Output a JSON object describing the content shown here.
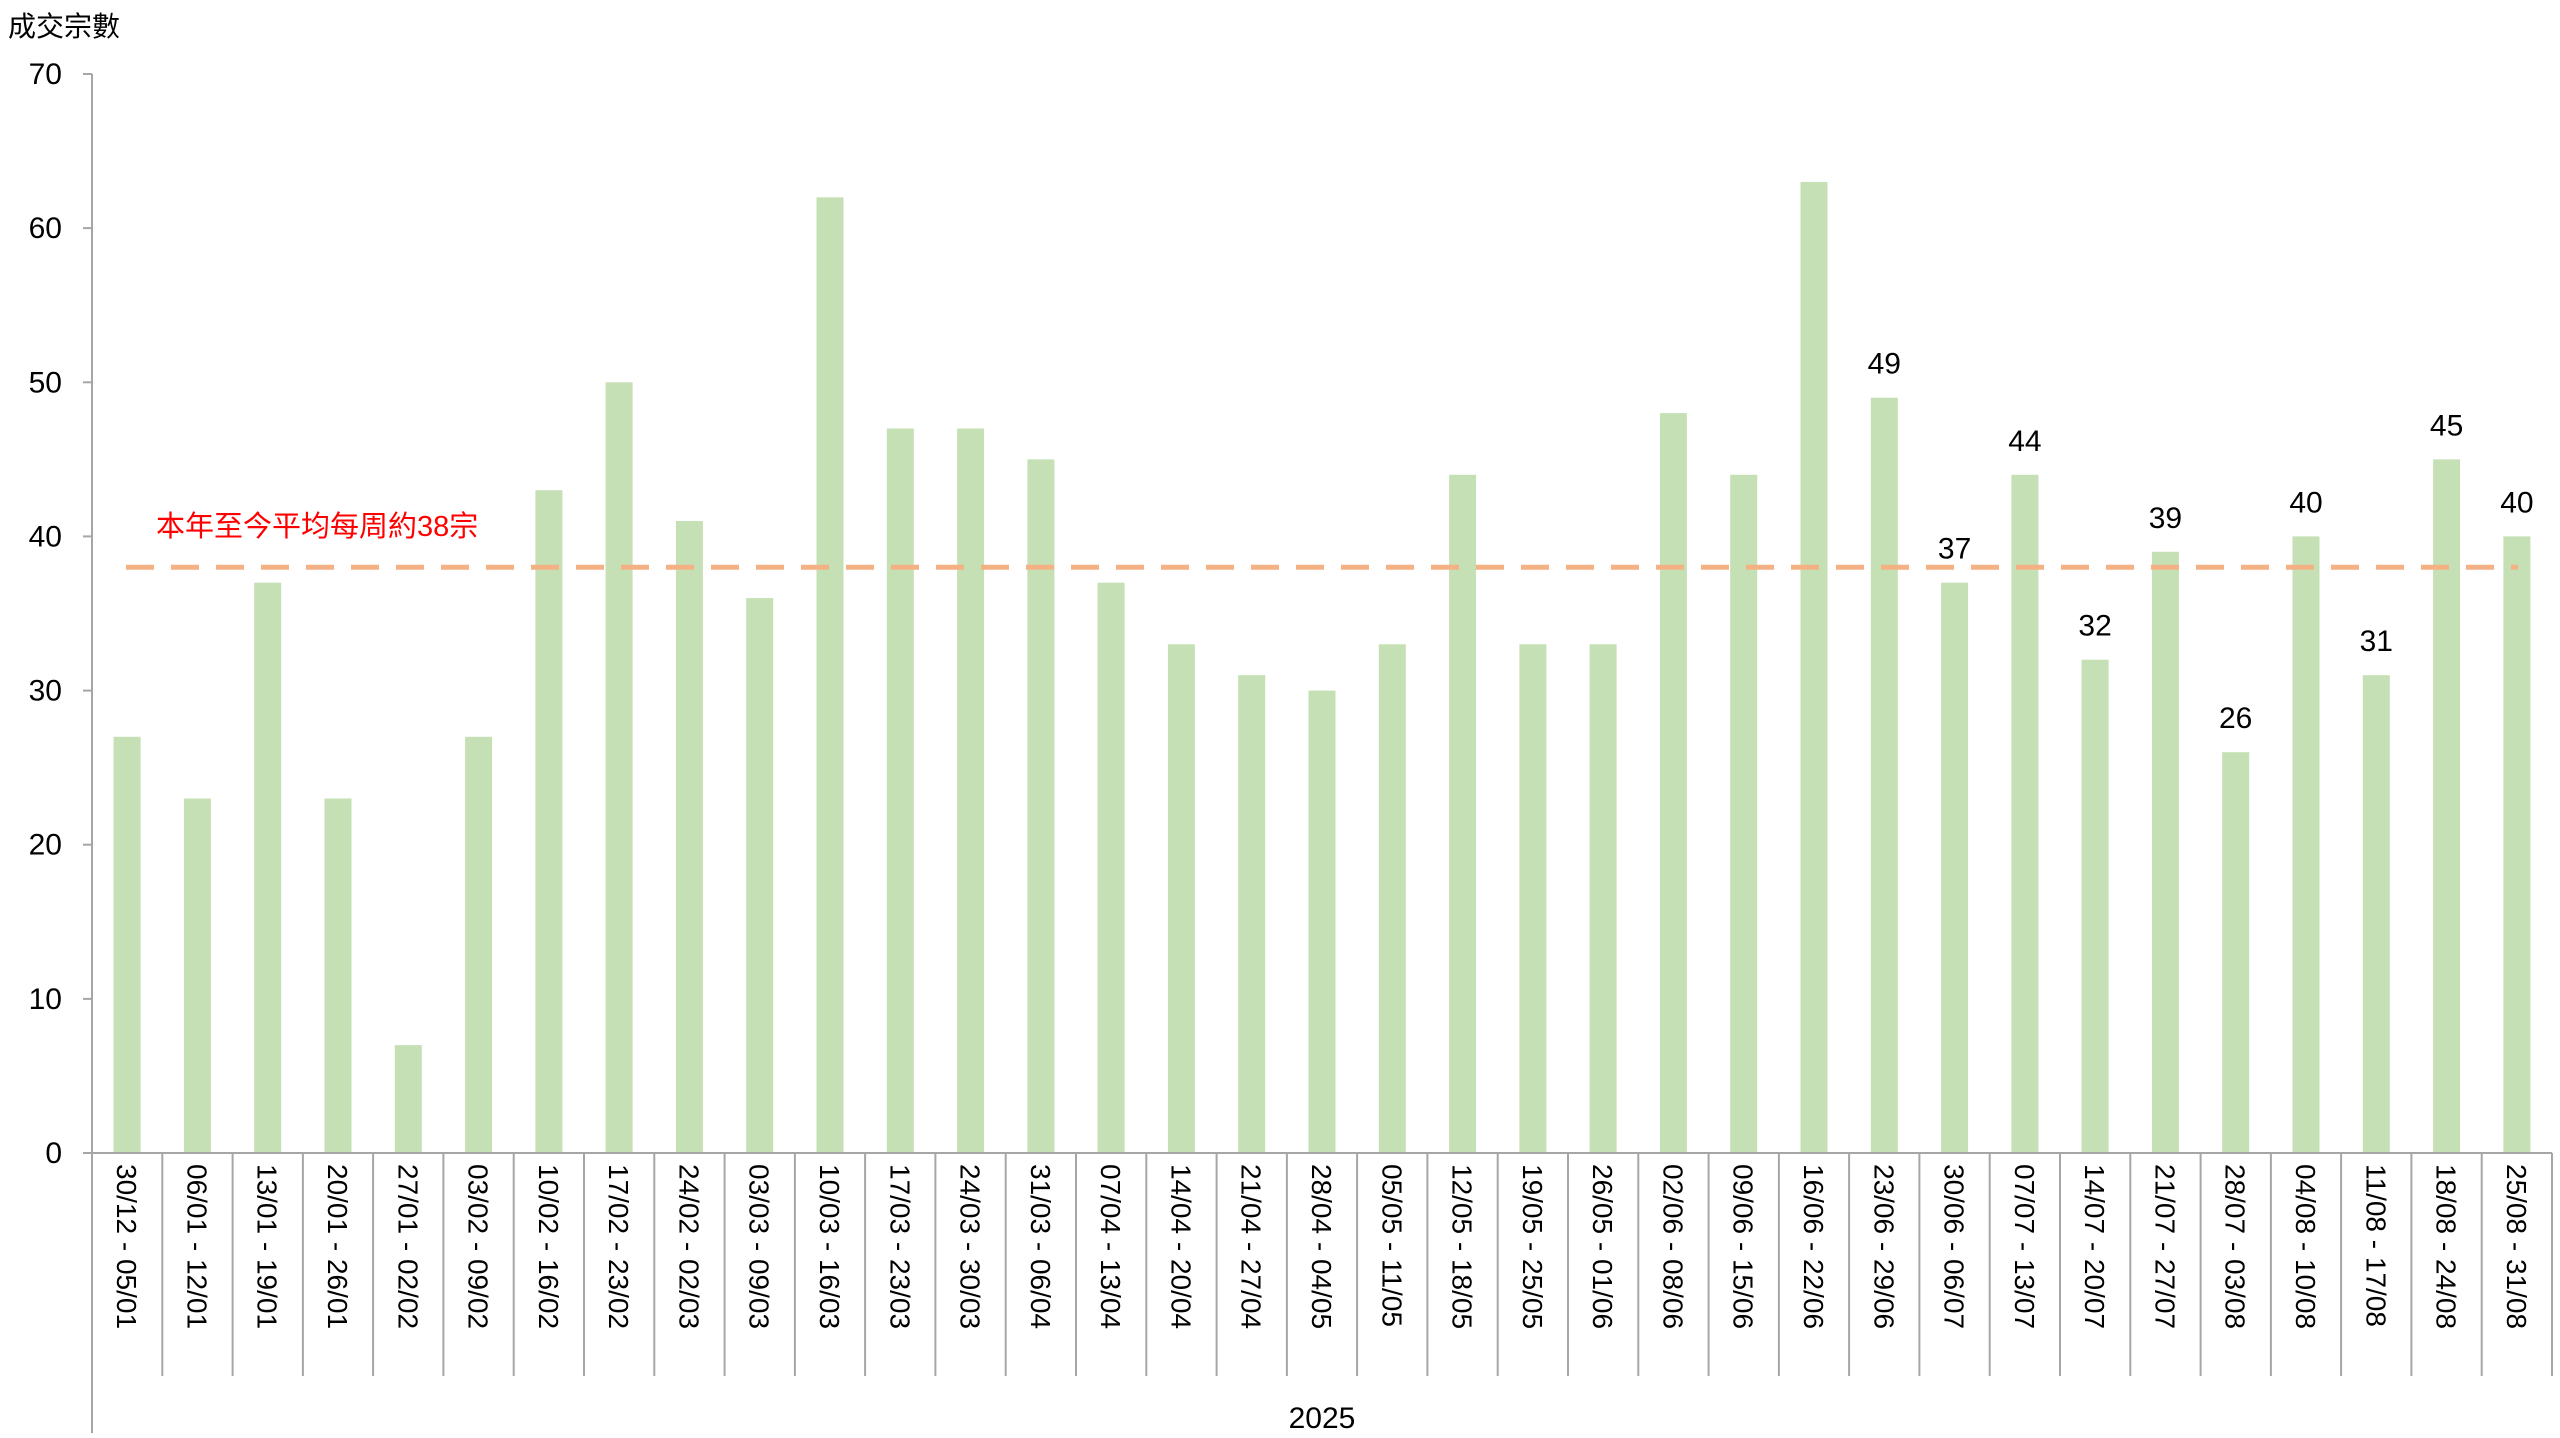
{
  "chart_data": {
    "type": "bar",
    "ylabel": "成交宗數",
    "xlabel": "2025",
    "ylim": [
      0,
      70
    ],
    "yticks": [
      0,
      10,
      20,
      30,
      40,
      50,
      60,
      70
    ],
    "grid": false,
    "categories": [
      "30/12 - 05/01",
      "06/01 - 12/01",
      "13/01 - 19/01",
      "20/01 - 26/01",
      "27/01 - 02/02",
      "03/02 - 09/02",
      "10/02 - 16/02",
      "17/02 - 23/02",
      "24/02 - 02/03",
      "03/03 - 09/03",
      "10/03 - 16/03",
      "17/03 - 23/03",
      "24/03 - 30/03",
      "31/03 - 06/04",
      "07/04 - 13/04",
      "14/04 - 20/04",
      "21/04 - 27/04",
      "28/04 - 04/05",
      "05/05 - 11/05",
      "12/05 - 18/05",
      "19/05 - 25/05",
      "26/05 - 01/06",
      "02/06 - 08/06",
      "09/06 - 15/06",
      "16/06 - 22/06",
      "23/06 - 29/06",
      "30/06 - 06/07",
      "07/07 - 13/07",
      "14/07 - 20/07",
      "21/07 - 27/07",
      "28/07 - 03/08",
      "04/08 - 10/08",
      "11/08 - 17/08",
      "18/08 - 24/08",
      "25/08 - 31/08"
    ],
    "values": [
      27,
      23,
      37,
      23,
      7,
      27,
      43,
      50,
      41,
      36,
      62,
      47,
      47,
      45,
      37,
      33,
      31,
      30,
      33,
      44,
      33,
      33,
      48,
      44,
      63,
      49,
      37,
      44,
      32,
      39,
      26,
      40,
      31,
      45,
      40
    ],
    "labeled_from_index": 25,
    "average_line": {
      "value": 38,
      "label": "本年至今平均每周約38宗",
      "color": "#f4b183"
    },
    "colors": {
      "bar": "#c5e0b4",
      "axis": "#a6a6a6",
      "annotation": "#ff0000"
    }
  }
}
